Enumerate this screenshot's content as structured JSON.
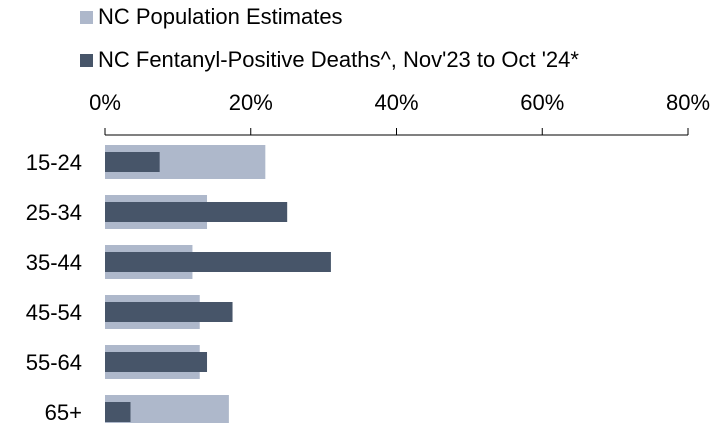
{
  "chart_data": {
    "type": "bar",
    "orientation": "horizontal",
    "categories": [
      "15-24",
      "25-34",
      "35-44",
      "45-54",
      "55-64",
      "65+"
    ],
    "series": [
      {
        "name": "NC Population Estimates",
        "color": "#aeb8cb",
        "values": [
          22,
          14,
          12,
          13,
          13,
          17
        ]
      },
      {
        "name": "NC Fentanyl-Positive Deaths^, Nov'23 to Oct '24*",
        "color": "#475569",
        "values": [
          7.5,
          25,
          31,
          17.5,
          14,
          3.5
        ]
      }
    ],
    "xlim": [
      0,
      80
    ],
    "xticks": [
      "0%",
      "20%",
      "40%",
      "60%",
      "80%"
    ],
    "legend_position": "top",
    "grid": false
  }
}
